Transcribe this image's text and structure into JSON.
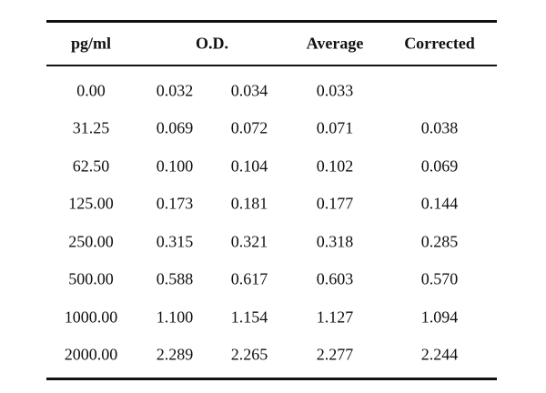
{
  "table": {
    "headers": {
      "concentration": "pg/ml",
      "od": "O.D.",
      "average": "Average",
      "corrected": "Corrected"
    },
    "rows": [
      {
        "conc": "0.00",
        "od1": "0.032",
        "od2": "0.034",
        "avg": "0.033",
        "corr": ""
      },
      {
        "conc": "31.25",
        "od1": "0.069",
        "od2": "0.072",
        "avg": "0.071",
        "corr": "0.038"
      },
      {
        "conc": "62.50",
        "od1": "0.100",
        "od2": "0.104",
        "avg": "0.102",
        "corr": "0.069"
      },
      {
        "conc": "125.00",
        "od1": "0.173",
        "od2": "0.181",
        "avg": "0.177",
        "corr": "0.144"
      },
      {
        "conc": "250.00",
        "od1": "0.315",
        "od2": "0.321",
        "avg": "0.318",
        "corr": "0.285"
      },
      {
        "conc": "500.00",
        "od1": "0.588",
        "od2": "0.617",
        "avg": "0.603",
        "corr": "0.570"
      },
      {
        "conc": "1000.00",
        "od1": "1.100",
        "od2": "1.154",
        "avg": "1.127",
        "corr": "1.094"
      },
      {
        "conc": "2000.00",
        "od1": "2.289",
        "od2": "2.265",
        "avg": "2.277",
        "corr": "2.244"
      }
    ]
  }
}
